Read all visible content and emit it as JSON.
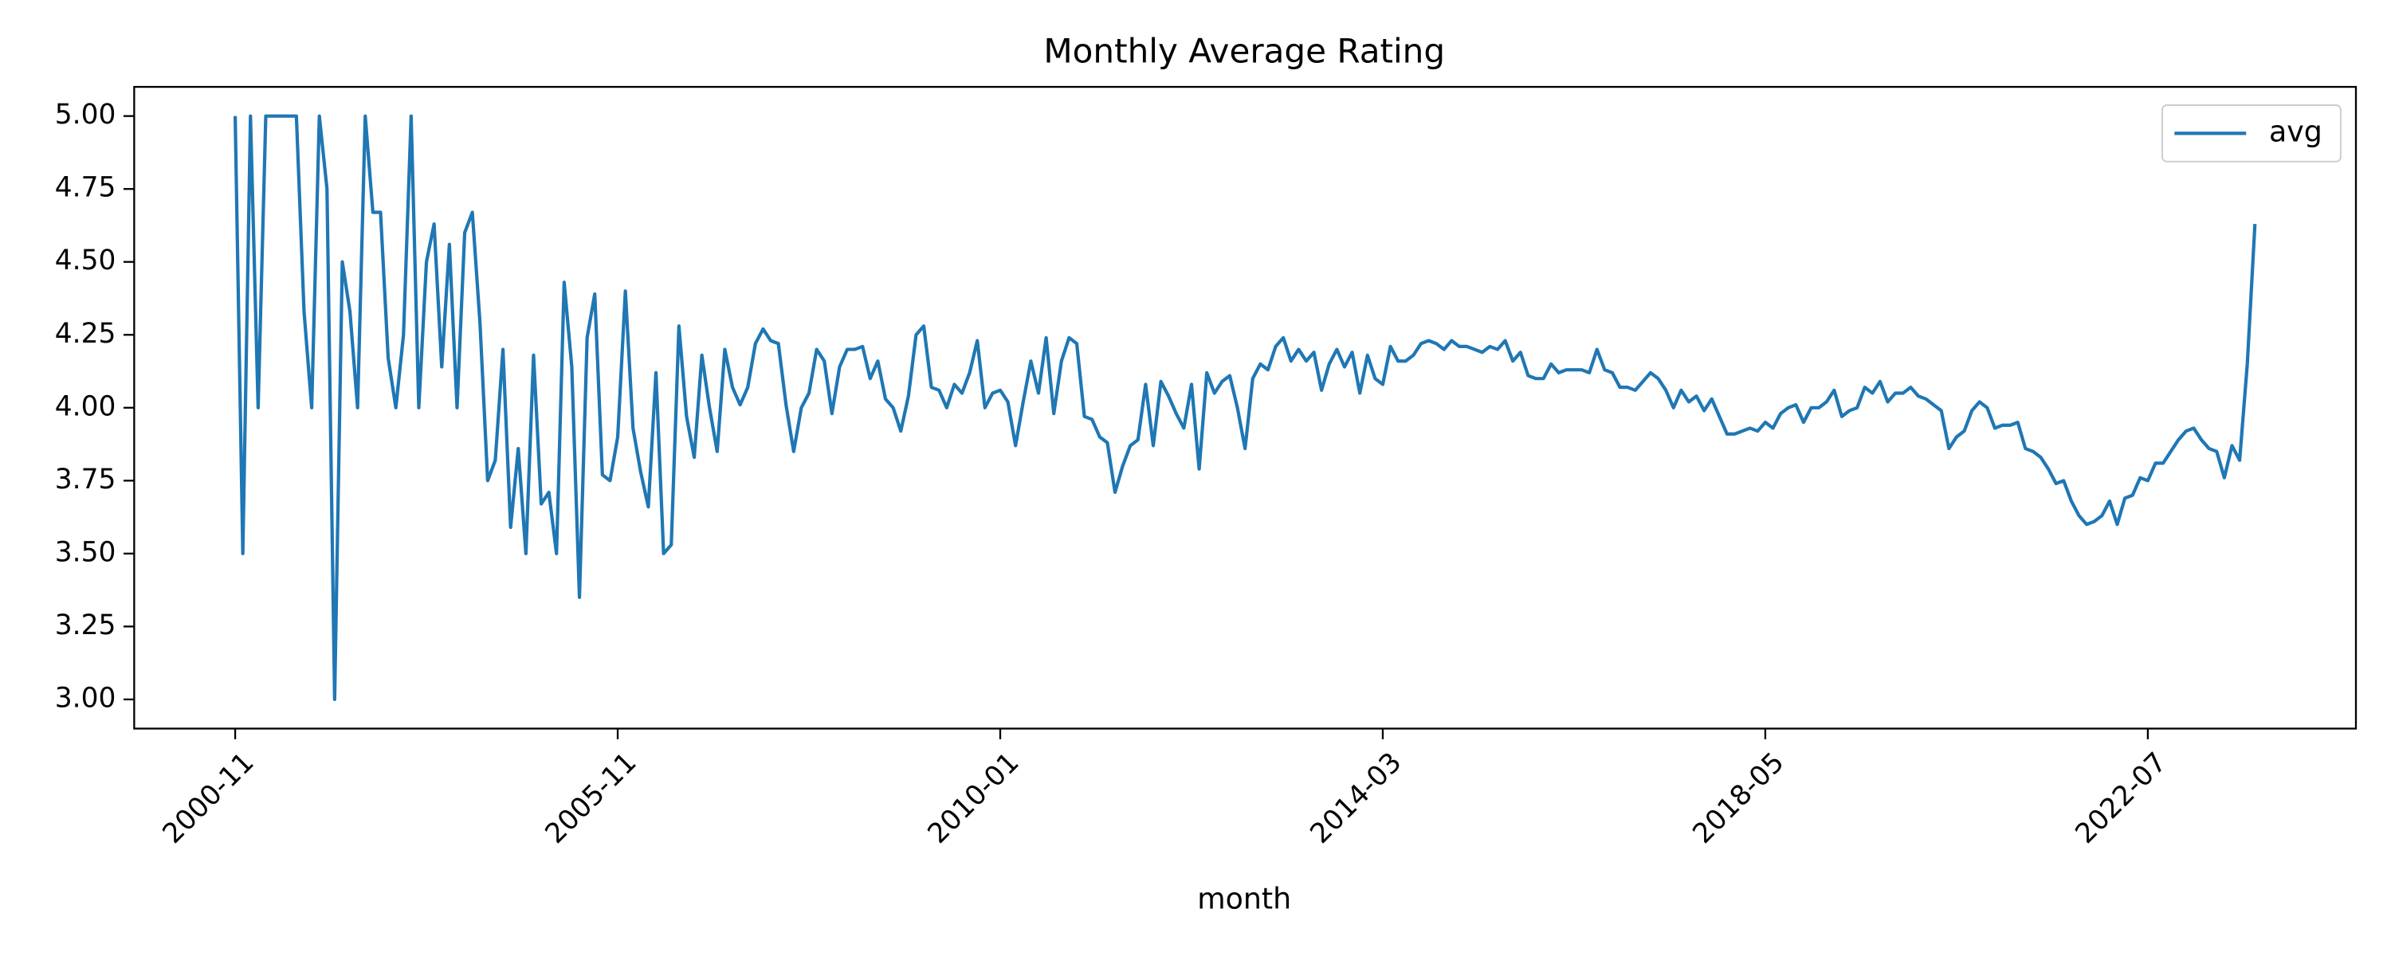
{
  "chart_data": {
    "type": "line",
    "title": "Monthly Average Rating",
    "x_label": "month",
    "categories": [
      "2000-11",
      null,
      null,
      null,
      null,
      null,
      null,
      null,
      null,
      null,
      null,
      null,
      null,
      null,
      null,
      null,
      null,
      null,
      null,
      null,
      null,
      null,
      null,
      null,
      null,
      null,
      null,
      null,
      null,
      null,
      null,
      null,
      null,
      null,
      null,
      null,
      null,
      null,
      null,
      null,
      null,
      null,
      null,
      null,
      null,
      null,
      null,
      null,
      null,
      null,
      "2005-11",
      null,
      null,
      null,
      null,
      null,
      null,
      null,
      null,
      null,
      null,
      null,
      null,
      null,
      null,
      null,
      null,
      null,
      null,
      null,
      null,
      null,
      null,
      null,
      null,
      null,
      null,
      null,
      null,
      null,
      null,
      null,
      null,
      null,
      null,
      null,
      null,
      null,
      null,
      null,
      null,
      null,
      null,
      null,
      null,
      null,
      null,
      null,
      null,
      null,
      "2010-01",
      null,
      null,
      null,
      null,
      null,
      null,
      null,
      null,
      null,
      null,
      null,
      null,
      null,
      null,
      null,
      null,
      null,
      null,
      null,
      null,
      null,
      null,
      null,
      null,
      null,
      null,
      null,
      null,
      null,
      null,
      null,
      null,
      null,
      null,
      null,
      null,
      null,
      null,
      null,
      null,
      null,
      null,
      null,
      null,
      null,
      null,
      null,
      null,
      null,
      "2014-03",
      null,
      null,
      null,
      null,
      null,
      null,
      null,
      null,
      null,
      null,
      null,
      null,
      null,
      null,
      null,
      null,
      null,
      null,
      null,
      null,
      null,
      null,
      null,
      null,
      null,
      null,
      null,
      null,
      null,
      null,
      null,
      null,
      null,
      null,
      null,
      null,
      null,
      null,
      null,
      null,
      null,
      null,
      null,
      null,
      null,
      null,
      null,
      null,
      null,
      "2018-05",
      null,
      null,
      null,
      null,
      null,
      null,
      null,
      null,
      null,
      null,
      null,
      null,
      null,
      null,
      null,
      null,
      null,
      null,
      null,
      null,
      null,
      null,
      null,
      null,
      null,
      null,
      null,
      null,
      null,
      null,
      null,
      null,
      null,
      null,
      null,
      null,
      null,
      null,
      null,
      null,
      null,
      null,
      null,
      null,
      null,
      null,
      null,
      null,
      null,
      "2022-07",
      null,
      null,
      null,
      null,
      null,
      null,
      null,
      null,
      null,
      null,
      null,
      null,
      null,
      null
    ],
    "series": [
      {
        "name": "avg",
        "color": "#1f77b4",
        "values": [
          5.0,
          3.5,
          5.0,
          4.0,
          5.0,
          5.0,
          5.0,
          5.0,
          5.0,
          4.33,
          4.0,
          5.0,
          4.75,
          3.0,
          4.5,
          4.33,
          4.0,
          5.0,
          4.67,
          4.67,
          4.17,
          4.0,
          4.25,
          5.0,
          4.0,
          4.5,
          4.63,
          4.14,
          4.56,
          4.0,
          4.6,
          4.67,
          4.29,
          3.75,
          3.82,
          4.2,
          3.59,
          3.86,
          3.5,
          4.18,
          3.67,
          3.71,
          3.5,
          4.43,
          4.14,
          3.35,
          4.24,
          4.39,
          3.77,
          3.75,
          3.9,
          4.4,
          3.93,
          3.78,
          3.66,
          4.12,
          3.5,
          3.53,
          4.28,
          3.97,
          3.83,
          4.18,
          4.0,
          3.85,
          4.2,
          4.07,
          4.01,
          4.07,
          4.22,
          4.27,
          4.23,
          4.22,
          4.01,
          3.85,
          4.0,
          4.05,
          4.2,
          4.16,
          3.98,
          4.14,
          4.2,
          4.2,
          4.21,
          4.1,
          4.16,
          4.03,
          4.0,
          3.92,
          4.04,
          4.25,
          4.28,
          4.07,
          4.06,
          4.0,
          4.08,
          4.05,
          4.12,
          4.23,
          4.0,
          4.05,
          4.06,
          4.02,
          3.87,
          4.02,
          4.16,
          4.05,
          4.24,
          3.98,
          4.16,
          4.24,
          4.22,
          3.97,
          3.96,
          3.9,
          3.88,
          3.71,
          3.8,
          3.87,
          3.89,
          4.08,
          3.87,
          4.09,
          4.04,
          3.98,
          3.93,
          4.08,
          3.79,
          4.12,
          4.05,
          4.09,
          4.11,
          4.0,
          3.86,
          4.1,
          4.15,
          4.13,
          4.21,
          4.24,
          4.16,
          4.2,
          4.16,
          4.19,
          4.06,
          4.15,
          4.2,
          4.14,
          4.19,
          4.05,
          4.18,
          4.1,
          4.08,
          4.21,
          4.16,
          4.16,
          4.18,
          4.22,
          4.23,
          4.22,
          4.2,
          4.23,
          4.21,
          4.21,
          4.2,
          4.19,
          4.21,
          4.2,
          4.23,
          4.16,
          4.19,
          4.11,
          4.1,
          4.1,
          4.15,
          4.12,
          4.13,
          4.13,
          4.13,
          4.12,
          4.2,
          4.13,
          4.12,
          4.07,
          4.07,
          4.06,
          4.09,
          4.12,
          4.1,
          4.06,
          4.0,
          4.06,
          4.02,
          4.04,
          3.99,
          4.03,
          3.97,
          3.91,
          3.91,
          3.92,
          3.93,
          3.92,
          3.95,
          3.93,
          3.98,
          4.0,
          4.01,
          3.95,
          4.0,
          4.0,
          4.02,
          4.06,
          3.97,
          3.99,
          4.0,
          4.07,
          4.05,
          4.09,
          4.02,
          4.05,
          4.05,
          4.07,
          4.04,
          4.03,
          4.01,
          3.99,
          3.86,
          3.9,
          3.92,
          3.99,
          4.02,
          4.0,
          3.93,
          3.94,
          3.94,
          3.95,
          3.86,
          3.85,
          3.83,
          3.79,
          3.74,
          3.75,
          3.68,
          3.63,
          3.6,
          3.61,
          3.63,
          3.68,
          3.6,
          3.69,
          3.7,
          3.76,
          3.75,
          3.81,
          3.81,
          3.85,
          3.89,
          3.92,
          3.93,
          3.89,
          3.86,
          3.85,
          3.76,
          3.87,
          3.82,
          4.15,
          4.63
        ]
      }
    ],
    "ylim": [
      2.9,
      5.1
    ],
    "yticks": [
      {
        "value": 3,
        "label": "3.00"
      },
      3.25,
      {
        "value": 3.5,
        "label": "3.50"
      },
      3.75,
      {
        "value": 4,
        "label": "4.00"
      },
      4.25,
      {
        "value": 4.5,
        "label": "4.50"
      },
      4.75,
      {
        "value": 5,
        "label": "5.00"
      }
    ],
    "grid": false,
    "legend": "upper right"
  }
}
